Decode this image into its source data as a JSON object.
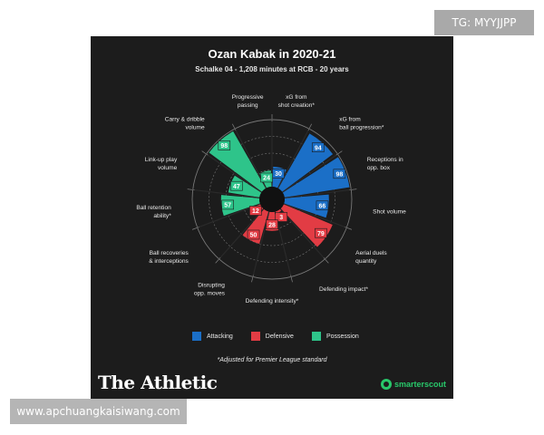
{
  "title": "Ozan Kabak in 2020-21",
  "subtitle": "Schalke 04 - 1,208 minutes at RCB - 20 years",
  "footnote": "*Adjusted for Premier League standard",
  "brand": "The Athletic",
  "scout_brand": "smarterscout",
  "watermark_tag": "TG: MYYJJPP",
  "watermark_url": "www.apchuangkaisiwang.com",
  "colors": {
    "Attacking": "#1b6fc7",
    "Defensive": "#e23c44",
    "Possession": "#2ec48a"
  },
  "legend": [
    {
      "label": "Attacking",
      "color": "#1b6fc7"
    },
    {
      "label": "Defensive",
      "color": "#e23c44"
    },
    {
      "label": "Possession",
      "color": "#2ec48a"
    }
  ],
  "chart_data": {
    "type": "polar-bar",
    "title": "Ozan Kabak in 2020-21",
    "subtitle": "Schalke 04 - 1,208 minutes at RCB - 20 years",
    "rlim": [
      0,
      100
    ],
    "categories": [
      {
        "label": [
          "xG from",
          "shot creation*"
        ],
        "value": 30,
        "group": "Attacking"
      },
      {
        "label": [
          "xG from",
          "ball progression*"
        ],
        "value": 94,
        "group": "Attacking"
      },
      {
        "label": [
          "Receptions in",
          "opp. box"
        ],
        "value": 98,
        "group": "Attacking"
      },
      {
        "label": [
          "Shot volume"
        ],
        "value": 66,
        "group": "Attacking"
      },
      {
        "label": [
          "Aerial duels",
          "quantity"
        ],
        "value": 79,
        "group": "Defensive"
      },
      {
        "label": [
          "Defending impact*"
        ],
        "value": 3,
        "group": "Defensive"
      },
      {
        "label": [
          "Defending intensity*"
        ],
        "value": 28,
        "group": "Defensive"
      },
      {
        "label": [
          "Disrupting",
          "opp. moves"
        ],
        "value": 50,
        "group": "Defensive"
      },
      {
        "label": [
          "Ball recoveries",
          "& interceptions"
        ],
        "value": 12,
        "group": "Defensive"
      },
      {
        "label": [
          "Ball retention",
          "ability*"
        ],
        "value": 57,
        "group": "Possession"
      },
      {
        "label": [
          "Link-up play",
          "volume"
        ],
        "value": 47,
        "group": "Possession"
      },
      {
        "label": [
          "Carry & dribble",
          "volume"
        ],
        "value": 98,
        "group": "Possession"
      },
      {
        "label": [
          "Progressive",
          "passing"
        ],
        "value": 24,
        "group": "Possession"
      }
    ]
  }
}
